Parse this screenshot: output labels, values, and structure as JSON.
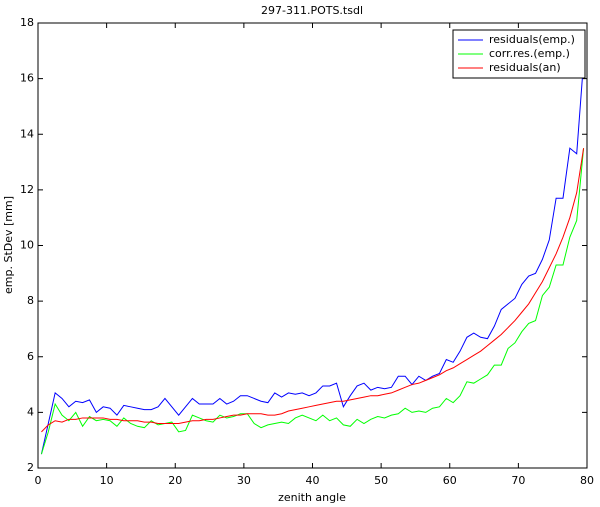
{
  "chart_data": {
    "type": "line",
    "title": "297-311.POTS.tsdl",
    "xlabel": "zenith angle",
    "ylabel": "emp. StDev [mm]",
    "x": [
      0.5,
      1.5,
      2.5,
      3.5,
      4.5,
      5.5,
      6.5,
      7.5,
      8.5,
      9.5,
      10.5,
      11.5,
      12.5,
      13.5,
      14.5,
      15.5,
      16.5,
      17.5,
      18.5,
      19.5,
      20.5,
      21.5,
      22.5,
      23.5,
      24.5,
      25.5,
      26.5,
      27.5,
      28.5,
      29.5,
      30.5,
      31.5,
      32.5,
      33.5,
      34.5,
      35.5,
      36.5,
      37.5,
      38.5,
      39.5,
      40.5,
      41.5,
      42.5,
      43.5,
      44.5,
      45.5,
      46.5,
      47.5,
      48.5,
      49.5,
      50.5,
      51.5,
      52.5,
      53.5,
      54.5,
      55.5,
      56.5,
      57.5,
      58.5,
      59.5,
      60.5,
      61.5,
      62.5,
      63.5,
      64.5,
      65.5,
      66.5,
      67.5,
      68.5,
      69.5,
      70.5,
      71.5,
      72.5,
      73.5,
      74.5,
      75.5,
      76.5,
      77.5,
      78.5,
      79.5
    ],
    "series": [
      {
        "name": "residuals(emp.)",
        "color": "#0000ff",
        "values": [
          2.5,
          3.6,
          4.7,
          4.5,
          4.2,
          4.4,
          4.35,
          4.45,
          4.0,
          4.2,
          4.15,
          3.9,
          4.25,
          4.2,
          4.15,
          4.1,
          4.1,
          4.2,
          4.5,
          4.2,
          3.9,
          4.2,
          4.5,
          4.3,
          4.3,
          4.3,
          4.5,
          4.3,
          4.4,
          4.6,
          4.6,
          4.5,
          4.4,
          4.35,
          4.7,
          4.55,
          4.7,
          4.65,
          4.7,
          4.6,
          4.7,
          4.95,
          4.95,
          5.05,
          4.2,
          4.6,
          4.95,
          5.05,
          4.8,
          4.9,
          4.85,
          4.9,
          5.3,
          5.3,
          5.0,
          5.3,
          5.15,
          5.3,
          5.4,
          5.9,
          5.8,
          6.2,
          6.7,
          6.85,
          6.7,
          6.65,
          7.1,
          7.7,
          7.9,
          8.1,
          8.6,
          8.9,
          9.0,
          9.5,
          10.2,
          11.7,
          11.7,
          13.5,
          13.3,
          16.6
        ]
      },
      {
        "name": "corr.res.(emp.)",
        "color": "#00ff00",
        "values": [
          2.5,
          3.3,
          4.3,
          3.9,
          3.7,
          4.0,
          3.5,
          3.85,
          3.7,
          3.75,
          3.7,
          3.5,
          3.8,
          3.6,
          3.5,
          3.45,
          3.7,
          3.55,
          3.6,
          3.65,
          3.3,
          3.35,
          3.9,
          3.8,
          3.7,
          3.65,
          3.9,
          3.8,
          3.85,
          3.95,
          3.95,
          3.6,
          3.45,
          3.55,
          3.6,
          3.65,
          3.6,
          3.8,
          3.9,
          3.8,
          3.7,
          3.9,
          3.7,
          3.8,
          3.55,
          3.5,
          3.75,
          3.6,
          3.75,
          3.85,
          3.8,
          3.9,
          3.95,
          4.15,
          4.0,
          4.05,
          4.0,
          4.15,
          4.2,
          4.5,
          4.35,
          4.6,
          5.1,
          5.05,
          5.2,
          5.35,
          5.7,
          5.7,
          6.3,
          6.5,
          6.9,
          7.2,
          7.3,
          8.2,
          8.5,
          9.3,
          9.3,
          10.3,
          10.9,
          13.5
        ]
      },
      {
        "name": "residuals(an)",
        "color": "#ff0000",
        "values": [
          3.3,
          3.55,
          3.7,
          3.65,
          3.75,
          3.75,
          3.8,
          3.8,
          3.8,
          3.8,
          3.75,
          3.75,
          3.7,
          3.7,
          3.7,
          3.65,
          3.65,
          3.6,
          3.6,
          3.6,
          3.6,
          3.65,
          3.7,
          3.7,
          3.75,
          3.75,
          3.8,
          3.85,
          3.9,
          3.9,
          3.95,
          3.95,
          3.95,
          3.9,
          3.9,
          3.95,
          4.05,
          4.1,
          4.15,
          4.2,
          4.25,
          4.3,
          4.35,
          4.4,
          4.4,
          4.45,
          4.5,
          4.55,
          4.6,
          4.6,
          4.65,
          4.7,
          4.8,
          4.9,
          5.0,
          5.05,
          5.15,
          5.25,
          5.35,
          5.5,
          5.6,
          5.75,
          5.9,
          6.05,
          6.2,
          6.4,
          6.6,
          6.8,
          7.05,
          7.3,
          7.6,
          7.9,
          8.3,
          8.7,
          9.2,
          9.7,
          10.3,
          11.0,
          11.9,
          13.5
        ]
      }
    ],
    "xlim": [
      0,
      80
    ],
    "xticks": [
      0,
      10,
      20,
      30,
      40,
      50,
      60,
      70,
      80
    ],
    "ylim": [
      2,
      18
    ],
    "yticks": [
      2,
      4,
      6,
      8,
      10,
      12,
      14,
      16,
      18
    ],
    "legend": "top-right"
  }
}
